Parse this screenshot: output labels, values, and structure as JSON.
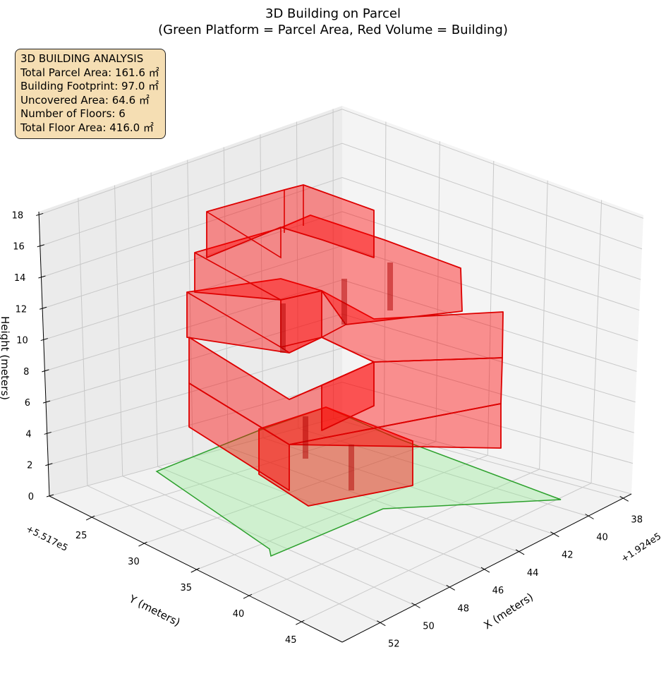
{
  "chart_data": {
    "type": "3d-polygons",
    "title": "3D Building on Parcel",
    "subtitle": "(Green Platform = Parcel Area, Red Volume = Building)",
    "xlabel": "X (meters)",
    "ylabel": "Y (meters)",
    "zlabel": "Height (meters)",
    "x_offset": "+1.924e5",
    "y_offset": "+5.517e5",
    "x_ticks": [
      "38",
      "40",
      "42",
      "44",
      "46",
      "48",
      "50",
      "52"
    ],
    "y_ticks": [
      "25",
      "30",
      "35",
      "40",
      "45"
    ],
    "z_ticks": [
      "0",
      "2",
      "4",
      "6",
      "8",
      "10",
      "12",
      "14",
      "16",
      "18"
    ],
    "zlim": [
      0,
      18
    ],
    "grid": true,
    "series": [
      {
        "name": "Parcel Area",
        "color": "#2ca02c",
        "fill": "#90ee90"
      },
      {
        "name": "Building",
        "color": "#dd0000",
        "fill": "#ff0000"
      }
    ]
  },
  "info_box": {
    "heading": "3D BUILDING ANALYSIS",
    "lines": [
      "Total Parcel Area: 161.6 ㎡",
      "Building Footprint: 97.0 ㎡",
      "Uncovered Area: 64.6 ㎡",
      "Number of Floors: 6",
      "Total Floor Area: 416.0 ㎡"
    ]
  }
}
